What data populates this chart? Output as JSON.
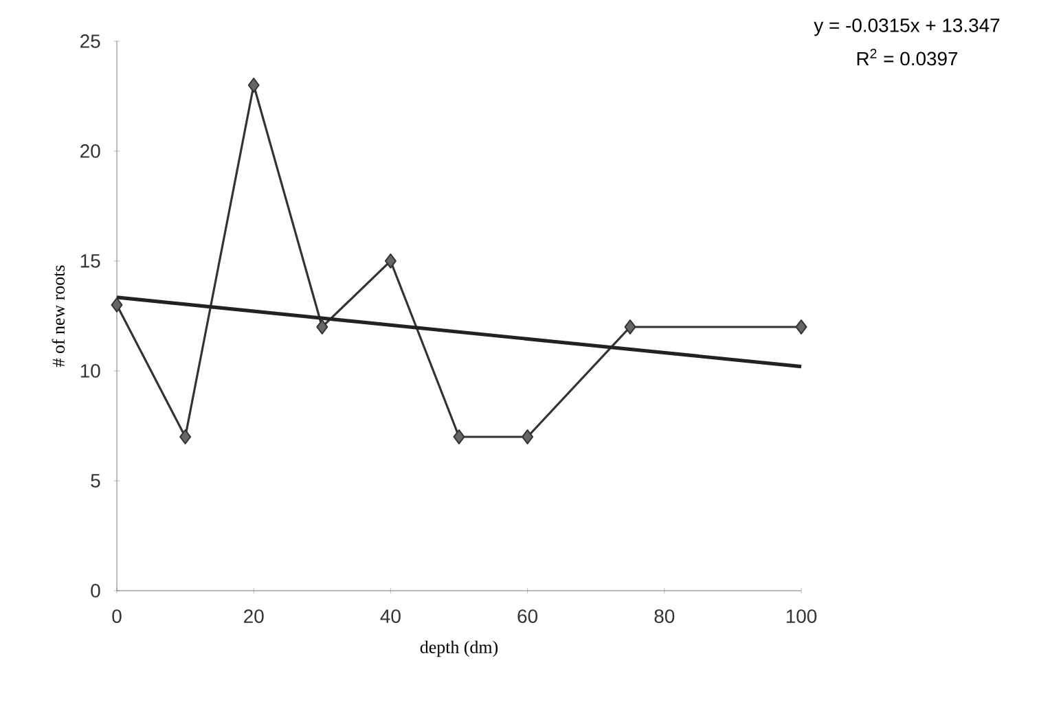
{
  "chart_data": {
    "type": "line",
    "xlabel": "depth (dm)",
    "ylabel": "# of new roots",
    "annotations": [
      "y = -0.0315x + 13.347",
      "R$^{2}$ = 0.0397"
    ],
    "xlim": [
      0,
      100
    ],
    "xticks": [
      0,
      20,
      40,
      60,
      80,
      100
    ],
    "ylim": [
      0,
      25
    ],
    "yticks": [
      0,
      5,
      10,
      15,
      20,
      25
    ],
    "grid": false,
    "series": [
      {
        "color": "#333333",
        "marker": "diamond",
        "x": [
          0,
          10,
          20,
          30,
          40,
          50,
          60,
          75,
          100
        ],
        "values": [
          13,
          7,
          23,
          12,
          15,
          7,
          7,
          12,
          12
        ]
      },
      {
        "type": "line",
        "color": "#222222",
        "marker": "none",
        "x": [
          0,
          100
        ],
        "values": [
          13.347,
          10.197
        ]
      }
    ]
  }
}
